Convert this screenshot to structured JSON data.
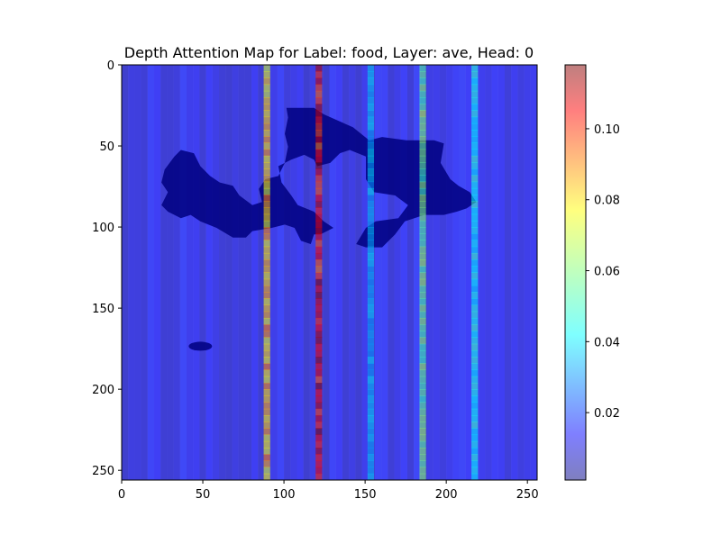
{
  "chart_data": {
    "type": "heatmap",
    "title": "Depth Attention Map for Label: food, Layer: ave, Head: 0",
    "xlabel": "",
    "ylabel": "",
    "x_range": [
      0,
      255
    ],
    "y_range": [
      255,
      0
    ],
    "x_ticks": [
      "0",
      "50",
      "100",
      "150",
      "200",
      "250"
    ],
    "x_tick_values": [
      0,
      50,
      100,
      150,
      200,
      250
    ],
    "y_ticks": [
      "0",
      "50",
      "100",
      "150",
      "200",
      "250"
    ],
    "y_tick_values": [
      0,
      50,
      100,
      150,
      200,
      250
    ],
    "colorbar": {
      "colormap": "jet",
      "alpha": 0.5,
      "vmin": 0.001,
      "vmax": 0.118,
      "ticks": [
        "0.02",
        "0.04",
        "0.06",
        "0.08",
        "0.10"
      ],
      "tick_values": [
        0.02,
        0.04,
        0.06,
        0.08,
        0.1
      ]
    },
    "background_value": 0.012,
    "high_attention_columns": [
      {
        "x": 89,
        "peak": 0.095
      },
      {
        "x": 121,
        "peak": 0.118
      },
      {
        "x": 153,
        "peak": 0.045
      },
      {
        "x": 185,
        "peak": 0.07
      },
      {
        "x": 217,
        "peak": 0.055
      }
    ],
    "dark_region_outline": [
      [
        101,
        26
      ],
      [
        118,
        26
      ],
      [
        124,
        30
      ],
      [
        142,
        38
      ],
      [
        152,
        46
      ],
      [
        160,
        44
      ],
      [
        175,
        46
      ],
      [
        183,
        46
      ],
      [
        192,
        46
      ],
      [
        198,
        48
      ],
      [
        196,
        60
      ],
      [
        202,
        70
      ],
      [
        207,
        74
      ],
      [
        214,
        78
      ],
      [
        218,
        84
      ],
      [
        212,
        88
      ],
      [
        206,
        90
      ],
      [
        198,
        92
      ],
      [
        186,
        92
      ],
      [
        174,
        96
      ],
      [
        168,
        104
      ],
      [
        160,
        112
      ],
      [
        150,
        112
      ],
      [
        144,
        110
      ],
      [
        150,
        100
      ],
      [
        156,
        96
      ],
      [
        170,
        94
      ],
      [
        176,
        86
      ],
      [
        168,
        80
      ],
      [
        155,
        78
      ],
      [
        150,
        70
      ],
      [
        150,
        56
      ],
      [
        140,
        52
      ],
      [
        134,
        54
      ],
      [
        128,
        60
      ],
      [
        120,
        62
      ],
      [
        118,
        58
      ],
      [
        112,
        55
      ],
      [
        104,
        58
      ],
      [
        96,
        62
      ],
      [
        98,
        72
      ],
      [
        104,
        80
      ],
      [
        108,
        86
      ],
      [
        118,
        90
      ],
      [
        124,
        96
      ],
      [
        130,
        100
      ],
      [
        122,
        104
      ],
      [
        118,
        104
      ],
      [
        116,
        110
      ],
      [
        110,
        108
      ],
      [
        106,
        100
      ],
      [
        100,
        98
      ],
      [
        92,
        100
      ],
      [
        80,
        102
      ],
      [
        76,
        106
      ],
      [
        68,
        106
      ],
      [
        58,
        100
      ],
      [
        48,
        96
      ],
      [
        42,
        92
      ],
      [
        36,
        94
      ],
      [
        28,
        90
      ],
      [
        24,
        86
      ],
      [
        28,
        78
      ],
      [
        24,
        72
      ],
      [
        26,
        64
      ],
      [
        32,
        56
      ],
      [
        36,
        52
      ],
      [
        44,
        54
      ],
      [
        48,
        62
      ],
      [
        54,
        68
      ],
      [
        60,
        72
      ],
      [
        68,
        74
      ],
      [
        72,
        80
      ],
      [
        80,
        86
      ],
      [
        86,
        84
      ],
      [
        84,
        76
      ],
      [
        88,
        70
      ],
      [
        96,
        68
      ],
      [
        100,
        60
      ],
      [
        102,
        50
      ],
      [
        100,
        42
      ],
      [
        102,
        32
      ]
    ],
    "small_blob_center": [
      48,
      173
    ]
  }
}
